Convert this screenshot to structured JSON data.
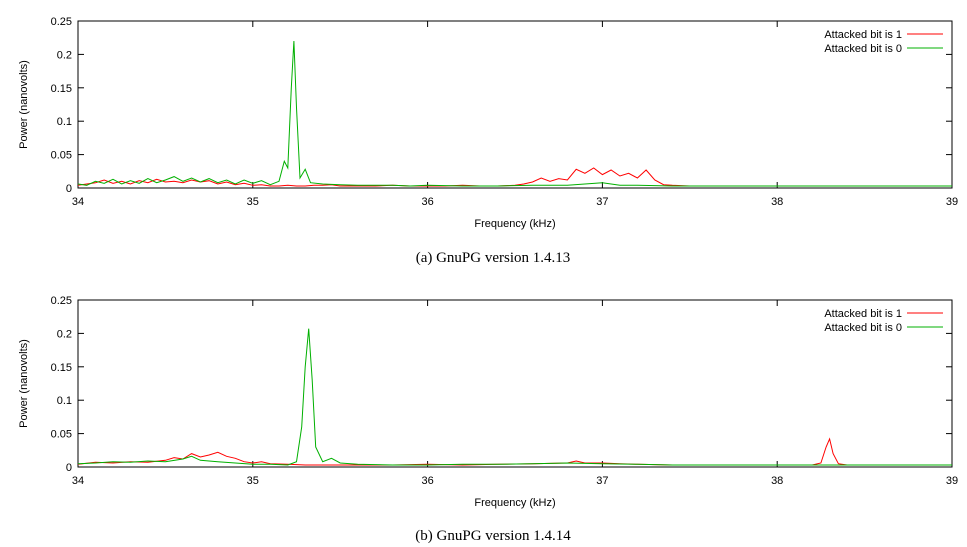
{
  "chart_data": [
    {
      "type": "line",
      "caption": "(a) GnuPG version 1.4.13",
      "xlabel": "Frequency (kHz)",
      "ylabel": "Power (nanovolts)",
      "xlim": [
        34,
        39
      ],
      "ylim": [
        0,
        0.25
      ],
      "xticks": [
        "34",
        "35",
        "36",
        "37",
        "38",
        "39"
      ],
      "yticks": [
        "0",
        "0.05",
        "0.1",
        "0.15",
        "0.2",
        "0.25"
      ],
      "legend_position": "top-right",
      "series": [
        {
          "name": "Attacked bit is 1",
          "color": "#ff0000",
          "points": [
            [
              34.0,
              0.004
            ],
            [
              34.05,
              0.006
            ],
            [
              34.1,
              0.008
            ],
            [
              34.15,
              0.012
            ],
            [
              34.2,
              0.007
            ],
            [
              34.25,
              0.01
            ],
            [
              34.3,
              0.006
            ],
            [
              34.35,
              0.011
            ],
            [
              34.4,
              0.008
            ],
            [
              34.45,
              0.013
            ],
            [
              34.5,
              0.009
            ],
            [
              34.55,
              0.01
            ],
            [
              34.6,
              0.008
            ],
            [
              34.65,
              0.012
            ],
            [
              34.7,
              0.009
            ],
            [
              34.75,
              0.011
            ],
            [
              34.8,
              0.006
            ],
            [
              34.85,
              0.009
            ],
            [
              34.9,
              0.005
            ],
            [
              34.95,
              0.007
            ],
            [
              35.0,
              0.004
            ],
            [
              35.05,
              0.005
            ],
            [
              35.1,
              0.003
            ],
            [
              35.15,
              0.003
            ],
            [
              35.2,
              0.004
            ],
            [
              35.25,
              0.003
            ],
            [
              35.3,
              0.003
            ],
            [
              35.35,
              0.004
            ],
            [
              35.4,
              0.004
            ],
            [
              35.45,
              0.005
            ],
            [
              35.5,
              0.003
            ],
            [
              35.6,
              0.003
            ],
            [
              35.7,
              0.003
            ],
            [
              35.8,
              0.004
            ],
            [
              35.9,
              0.003
            ],
            [
              36.0,
              0.003
            ],
            [
              36.1,
              0.003
            ],
            [
              36.2,
              0.004
            ],
            [
              36.3,
              0.003
            ],
            [
              36.4,
              0.003
            ],
            [
              36.5,
              0.004
            ],
            [
              36.55,
              0.006
            ],
            [
              36.6,
              0.009
            ],
            [
              36.65,
              0.015
            ],
            [
              36.7,
              0.01
            ],
            [
              36.75,
              0.014
            ],
            [
              36.8,
              0.012
            ],
            [
              36.85,
              0.028
            ],
            [
              36.9,
              0.022
            ],
            [
              36.95,
              0.03
            ],
            [
              37.0,
              0.02
            ],
            [
              37.05,
              0.027
            ],
            [
              37.1,
              0.018
            ],
            [
              37.15,
              0.022
            ],
            [
              37.2,
              0.015
            ],
            [
              37.25,
              0.027
            ],
            [
              37.3,
              0.012
            ],
            [
              37.35,
              0.005
            ],
            [
              37.4,
              0.004
            ],
            [
              37.5,
              0.003
            ],
            [
              37.6,
              0.003
            ],
            [
              37.8,
              0.003
            ],
            [
              38.0,
              0.003
            ],
            [
              38.2,
              0.003
            ],
            [
              38.4,
              0.003
            ],
            [
              38.6,
              0.003
            ],
            [
              38.8,
              0.003
            ],
            [
              39.0,
              0.003
            ]
          ]
        },
        {
          "name": "Attacked bit is 0",
          "color": "#00b000",
          "points": [
            [
              34.0,
              0.006
            ],
            [
              34.05,
              0.004
            ],
            [
              34.1,
              0.01
            ],
            [
              34.15,
              0.007
            ],
            [
              34.2,
              0.013
            ],
            [
              34.25,
              0.006
            ],
            [
              34.3,
              0.011
            ],
            [
              34.35,
              0.007
            ],
            [
              34.4,
              0.014
            ],
            [
              34.45,
              0.008
            ],
            [
              34.5,
              0.012
            ],
            [
              34.55,
              0.017
            ],
            [
              34.6,
              0.01
            ],
            [
              34.65,
              0.015
            ],
            [
              34.7,
              0.009
            ],
            [
              34.75,
              0.014
            ],
            [
              34.8,
              0.008
            ],
            [
              34.85,
              0.012
            ],
            [
              34.9,
              0.006
            ],
            [
              34.95,
              0.012
            ],
            [
              35.0,
              0.007
            ],
            [
              35.05,
              0.011
            ],
            [
              35.1,
              0.005
            ],
            [
              35.15,
              0.01
            ],
            [
              35.18,
              0.04
            ],
            [
              35.2,
              0.03
            ],
            [
              35.22,
              0.15
            ],
            [
              35.235,
              0.22
            ],
            [
              35.25,
              0.12
            ],
            [
              35.27,
              0.015
            ],
            [
              35.3,
              0.028
            ],
            [
              35.33,
              0.008
            ],
            [
              35.4,
              0.006
            ],
            [
              35.5,
              0.005
            ],
            [
              35.6,
              0.004
            ],
            [
              35.7,
              0.004
            ],
            [
              35.8,
              0.004
            ],
            [
              35.9,
              0.003
            ],
            [
              36.0,
              0.004
            ],
            [
              36.2,
              0.003
            ],
            [
              36.4,
              0.003
            ],
            [
              36.6,
              0.004
            ],
            [
              36.8,
              0.004
            ],
            [
              36.9,
              0.006
            ],
            [
              37.0,
              0.008
            ],
            [
              37.1,
              0.004
            ],
            [
              37.2,
              0.004
            ],
            [
              37.4,
              0.003
            ],
            [
              37.6,
              0.003
            ],
            [
              37.8,
              0.003
            ],
            [
              38.0,
              0.003
            ],
            [
              38.2,
              0.003
            ],
            [
              38.4,
              0.003
            ],
            [
              38.6,
              0.003
            ],
            [
              38.8,
              0.003
            ],
            [
              39.0,
              0.003
            ]
          ]
        }
      ]
    },
    {
      "type": "line",
      "caption": "(b) GnuPG version 1.4.14",
      "xlabel": "Frequency (kHz)",
      "ylabel": "Power (nanovolts)",
      "xlim": [
        34,
        39
      ],
      "ylim": [
        0,
        0.25
      ],
      "xticks": [
        "34",
        "35",
        "36",
        "37",
        "38",
        "39"
      ],
      "yticks": [
        "0",
        "0.05",
        "0.1",
        "0.15",
        "0.2",
        "0.25"
      ],
      "legend_position": "top-right",
      "series": [
        {
          "name": "Attacked bit is 1",
          "color": "#ff0000",
          "points": [
            [
              34.0,
              0.004
            ],
            [
              34.1,
              0.007
            ],
            [
              34.2,
              0.006
            ],
            [
              34.3,
              0.008
            ],
            [
              34.4,
              0.007
            ],
            [
              34.5,
              0.01
            ],
            [
              34.55,
              0.014
            ],
            [
              34.6,
              0.012
            ],
            [
              34.65,
              0.02
            ],
            [
              34.7,
              0.015
            ],
            [
              34.75,
              0.018
            ],
            [
              34.8,
              0.022
            ],
            [
              34.85,
              0.016
            ],
            [
              34.9,
              0.013
            ],
            [
              34.95,
              0.008
            ],
            [
              35.0,
              0.006
            ],
            [
              35.05,
              0.008
            ],
            [
              35.1,
              0.005
            ],
            [
              35.2,
              0.004
            ],
            [
              35.3,
              0.003
            ],
            [
              35.4,
              0.003
            ],
            [
              35.5,
              0.003
            ],
            [
              35.6,
              0.003
            ],
            [
              35.8,
              0.003
            ],
            [
              36.0,
              0.004
            ],
            [
              36.2,
              0.003
            ],
            [
              36.4,
              0.004
            ],
            [
              36.6,
              0.005
            ],
            [
              36.8,
              0.006
            ],
            [
              36.85,
              0.009
            ],
            [
              36.9,
              0.006
            ],
            [
              37.0,
              0.006
            ],
            [
              37.1,
              0.005
            ],
            [
              37.2,
              0.004
            ],
            [
              37.4,
              0.003
            ],
            [
              37.6,
              0.003
            ],
            [
              37.8,
              0.003
            ],
            [
              38.0,
              0.003
            ],
            [
              38.2,
              0.003
            ],
            [
              38.25,
              0.006
            ],
            [
              38.28,
              0.03
            ],
            [
              38.3,
              0.042
            ],
            [
              38.32,
              0.02
            ],
            [
              38.35,
              0.005
            ],
            [
              38.4,
              0.003
            ],
            [
              38.6,
              0.003
            ],
            [
              38.8,
              0.003
            ],
            [
              39.0,
              0.003
            ]
          ]
        },
        {
          "name": "Attacked bit is 0",
          "color": "#00b000",
          "points": [
            [
              34.0,
              0.005
            ],
            [
              34.1,
              0.006
            ],
            [
              34.2,
              0.008
            ],
            [
              34.3,
              0.007
            ],
            [
              34.4,
              0.009
            ],
            [
              34.5,
              0.008
            ],
            [
              34.6,
              0.012
            ],
            [
              34.65,
              0.016
            ],
            [
              34.7,
              0.01
            ],
            [
              34.8,
              0.008
            ],
            [
              34.9,
              0.006
            ],
            [
              35.0,
              0.004
            ],
            [
              35.1,
              0.004
            ],
            [
              35.2,
              0.003
            ],
            [
              35.25,
              0.008
            ],
            [
              35.28,
              0.06
            ],
            [
              35.3,
              0.15
            ],
            [
              35.32,
              0.207
            ],
            [
              35.34,
              0.13
            ],
            [
              35.36,
              0.03
            ],
            [
              35.4,
              0.008
            ],
            [
              35.45,
              0.013
            ],
            [
              35.5,
              0.006
            ],
            [
              35.6,
              0.004
            ],
            [
              35.8,
              0.003
            ],
            [
              36.0,
              0.003
            ],
            [
              36.2,
              0.004
            ],
            [
              36.4,
              0.004
            ],
            [
              36.6,
              0.005
            ],
            [
              36.8,
              0.006
            ],
            [
              37.0,
              0.005
            ],
            [
              37.2,
              0.004
            ],
            [
              37.4,
              0.003
            ],
            [
              37.6,
              0.003
            ],
            [
              37.8,
              0.003
            ],
            [
              38.0,
              0.003
            ],
            [
              38.2,
              0.003
            ],
            [
              38.4,
              0.003
            ],
            [
              38.6,
              0.003
            ],
            [
              38.8,
              0.003
            ],
            [
              39.0,
              0.003
            ]
          ]
        }
      ]
    }
  ]
}
